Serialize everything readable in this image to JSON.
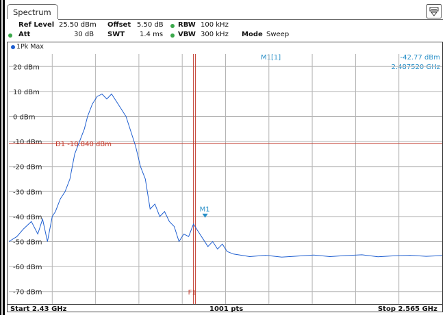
{
  "tab": {
    "label": "Spectrum"
  },
  "settings": {
    "ref_level_label": "Ref Level",
    "ref_level_value": "25.50 dBm",
    "offset_label": "Offset",
    "offset_value": "5.50 dB",
    "rbw_label": "RBW",
    "rbw_value": "100 kHz",
    "att_label": "Att",
    "att_value": "30 dB",
    "swt_label": "SWT",
    "swt_value": "1.4 ms",
    "vbw_label": "VBW",
    "vbw_value": "300 kHz",
    "mode_label": "Mode",
    "mode_value": "Sweep"
  },
  "trace": {
    "label": "1Pk Max",
    "color": "#1f5fd0"
  },
  "marker": {
    "id": "M1[1]",
    "short": "M1",
    "level": "-42.77 dBm",
    "freq": "2.487520 GHz",
    "color": "#2a90c8"
  },
  "lines": {
    "display_line": "D1 -10.840 dBm",
    "display_line_value": -10.84,
    "freq_line": "F1",
    "freq_line_value": 2.4875,
    "line_color": "#c0392b"
  },
  "footer": {
    "start": "Start 2.43 GHz",
    "points": "1001 pts",
    "stop": "Stop 2.565 GHz"
  },
  "chart_data": {
    "type": "line",
    "xlim": [
      2.43,
      2.565
    ],
    "ylim": [
      -75,
      25
    ],
    "y_ticks": [
      20,
      10,
      0,
      -10,
      -20,
      -30,
      -40,
      -50,
      -60,
      -70
    ],
    "y_tick_labels": [
      "20 dBm",
      "10 dBm",
      "0 dBm",
      "-10 dBm",
      "-20 dBm",
      "-30 dBm",
      "-40 dBm",
      "-50 dBm",
      "-60 dBm",
      "-70 dBm"
    ],
    "x_divisions": 10,
    "grid": true,
    "series": [
      {
        "x": [
          2.43,
          2.4325,
          2.4345,
          2.437,
          2.439,
          2.4405,
          2.442,
          2.4435,
          2.4445,
          2.446,
          2.4475,
          2.449,
          2.4505,
          2.452,
          2.4535,
          2.4545,
          2.456,
          2.4575,
          2.459,
          2.4605,
          2.462,
          2.4635,
          2.465,
          2.4665,
          2.468,
          2.4695,
          2.471,
          2.4725,
          2.474,
          2.4755,
          2.477,
          2.4785,
          2.48,
          2.4815,
          2.483,
          2.4845,
          2.486,
          2.4875,
          2.489,
          2.4905,
          2.492,
          2.4935,
          2.495,
          2.4965,
          2.498,
          2.5,
          2.505,
          2.51,
          2.515,
          2.52,
          2.525,
          2.53,
          2.535,
          2.54,
          2.545,
          2.55,
          2.555,
          2.56,
          2.565
        ],
        "values": [
          -50,
          -48,
          -45,
          -42,
          -47,
          -41,
          -50,
          -40,
          -38,
          -33,
          -30,
          -25,
          -15,
          -10,
          -5,
          0,
          5,
          8,
          9,
          7,
          9,
          6,
          3,
          0,
          -6,
          -12,
          -20,
          -25,
          -37,
          -35,
          -40,
          -38,
          -42,
          -44,
          -50,
          -47,
          -48,
          -43,
          -46,
          -49,
          -52,
          -50,
          -53,
          -51,
          -54,
          -55,
          -56,
          -55.5,
          -56.2,
          -55.8,
          -55.4,
          -56,
          -55.6,
          -55.3,
          -56.1,
          -55.7,
          -55.5,
          -55.9,
          -55.6
        ]
      }
    ]
  }
}
